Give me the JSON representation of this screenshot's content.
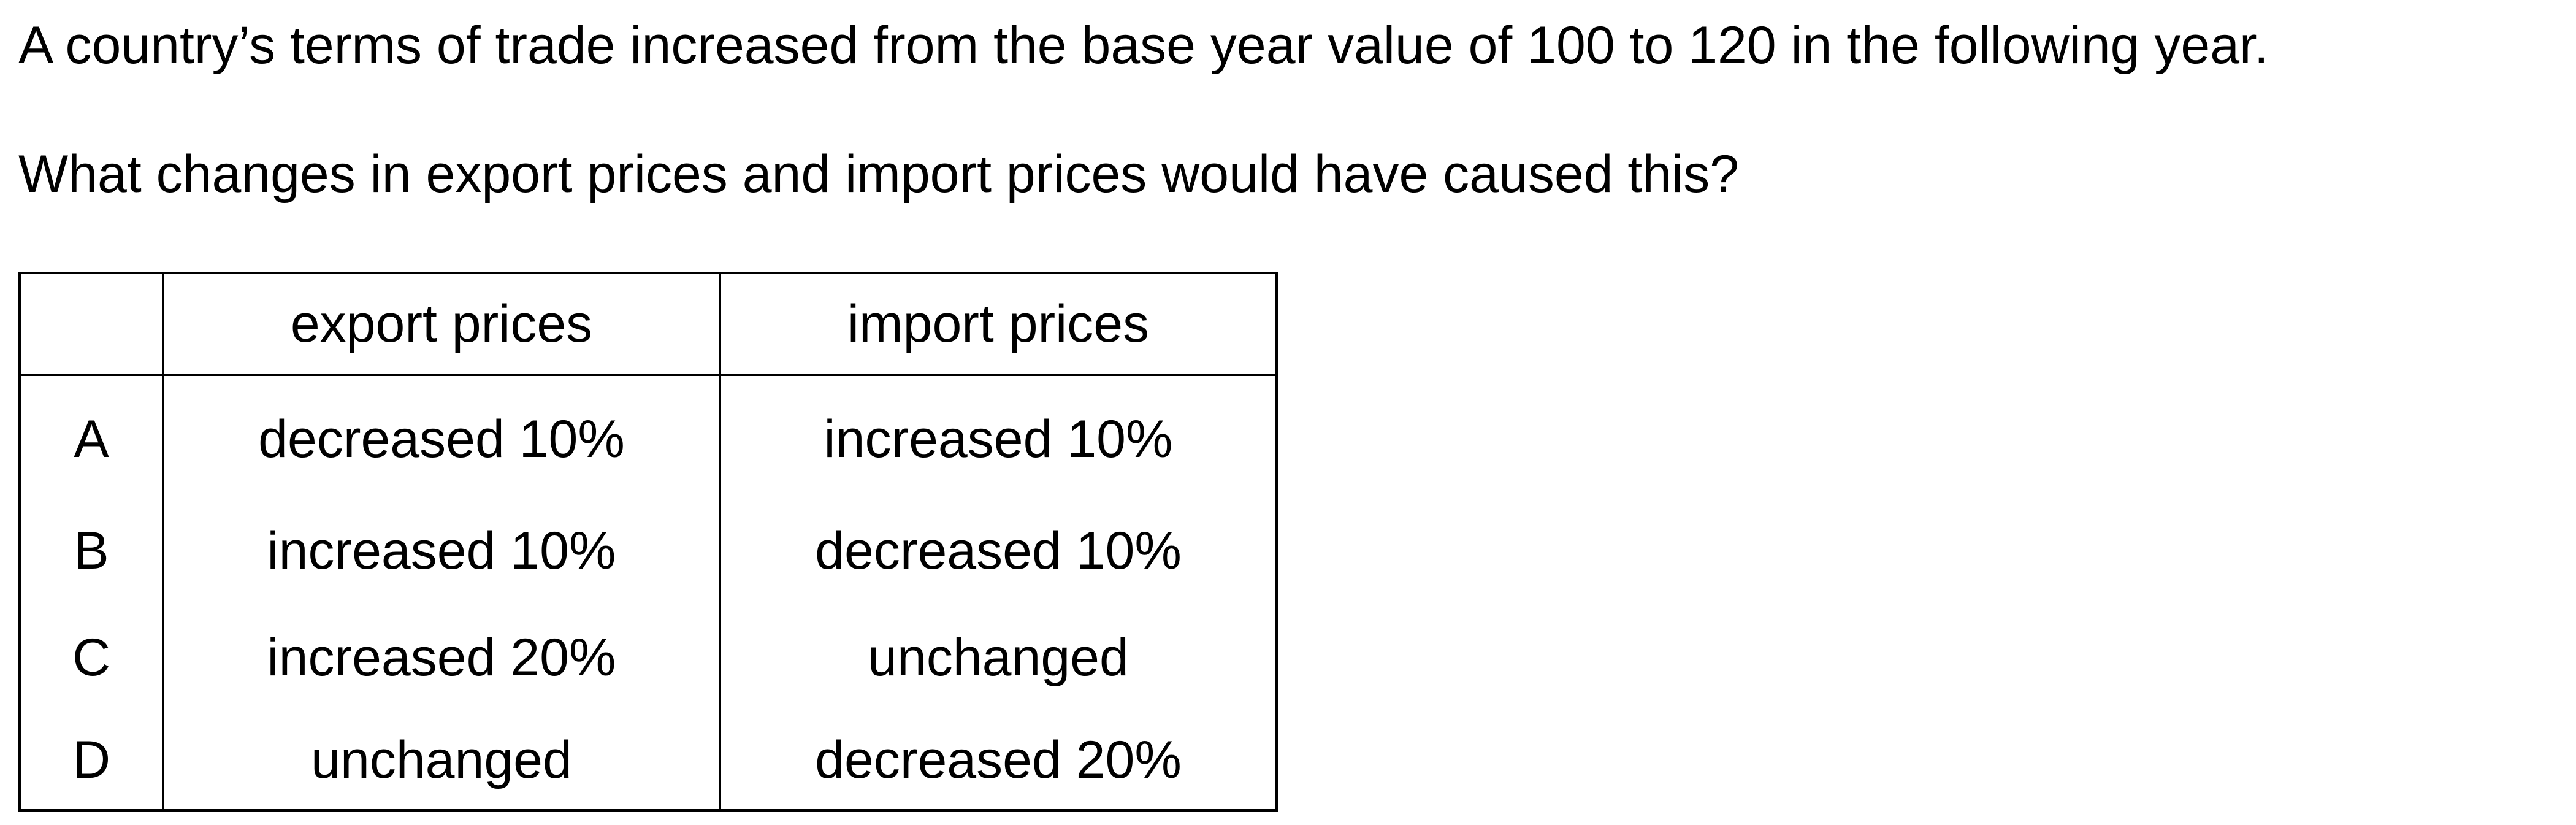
{
  "question": {
    "stem": "A country’s terms of trade increased from the base year value of 100 to 120 in the following year.",
    "prompt": "What changes in export prices and import prices would have caused this?"
  },
  "table": {
    "headers": {
      "blank": "",
      "export": "export prices",
      "import": "import prices"
    },
    "rows": [
      {
        "letter": "A",
        "export": "decreased 10%",
        "import": "increased 10%"
      },
      {
        "letter": "B",
        "export": "increased 10%",
        "import": "decreased 10%"
      },
      {
        "letter": "C",
        "export": "increased 20%",
        "import": "unchanged"
      },
      {
        "letter": "D",
        "export": "unchanged",
        "import": "decreased 20%"
      }
    ]
  }
}
